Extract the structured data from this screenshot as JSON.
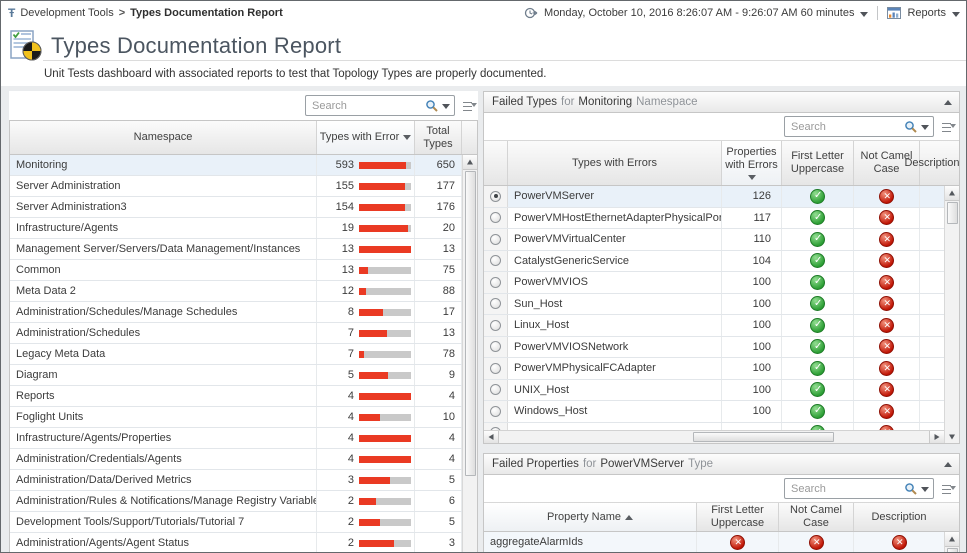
{
  "breadcrumb": {
    "item1": "Development Tools",
    "separator": ">",
    "item2": "Types Documentation Report"
  },
  "topbar": {
    "time_range": "Monday, October 10, 2016 8:26:07 AM - 9:26:07 AM 60 minutes",
    "reports_label": "Reports"
  },
  "header": {
    "title": "Types Documentation Report",
    "subtitle": "Unit Tests dashboard with associated reports to test that Topology Types are properly documented."
  },
  "colors": {
    "error_bar": "#ea3a23",
    "bar_track": "#c9c9c9",
    "pass_green": "#2c9e34",
    "fail_red": "#c01505",
    "selected_row": "#e9f1f9"
  },
  "namespace_table": {
    "search_placeholder": "Search",
    "col_namespace": "Namespace",
    "col_errors": "Types with Error",
    "col_total": "Total Types",
    "sorted_by": "Types with Error",
    "sort_dir": "desc",
    "rows": [
      {
        "namespace": "Monitoring",
        "errors": 593,
        "total": 650,
        "selected": true
      },
      {
        "namespace": "Server Administration",
        "errors": 155,
        "total": 177
      },
      {
        "namespace": "Server Administration3",
        "errors": 154,
        "total": 176
      },
      {
        "namespace": "Infrastructure/Agents",
        "errors": 19,
        "total": 20
      },
      {
        "namespace": "Management Server/Servers/Data Management/Instances",
        "errors": 13,
        "total": 13
      },
      {
        "namespace": "Common",
        "errors": 13,
        "total": 75
      },
      {
        "namespace": "Meta Data 2",
        "errors": 12,
        "total": 88
      },
      {
        "namespace": "Administration/Schedules/Manage Schedules",
        "errors": 8,
        "total": 17
      },
      {
        "namespace": "Administration/Schedules",
        "errors": 7,
        "total": 13
      },
      {
        "namespace": "Legacy Meta Data",
        "errors": 7,
        "total": 78
      },
      {
        "namespace": "Diagram",
        "errors": 5,
        "total": 9
      },
      {
        "namespace": "Reports",
        "errors": 4,
        "total": 4
      },
      {
        "namespace": "Foglight Units",
        "errors": 4,
        "total": 10
      },
      {
        "namespace": "Infrastructure/Agents/Properties",
        "errors": 4,
        "total": 4
      },
      {
        "namespace": "Administration/Credentials/Agents",
        "errors": 4,
        "total": 4
      },
      {
        "namespace": "Administration/Data/Derived Metrics",
        "errors": 3,
        "total": 5
      },
      {
        "namespace": "Administration/Rules & Notifications/Manage Registry Variables",
        "errors": 2,
        "total": 6
      },
      {
        "namespace": "Development Tools/Support/Tutorials/Tutorial 7",
        "errors": 2,
        "total": 5
      },
      {
        "namespace": "Administration/Agents/Agent Status",
        "errors": 2,
        "total": 3
      }
    ]
  },
  "failed_types_panel": {
    "title": {
      "lead": "Failed Types",
      "prep": "for",
      "subject": "Monitoring",
      "tail": "Namespace"
    },
    "search_placeholder": "Search",
    "col_type": "Types with Errors",
    "col_props": "Properties with Errors",
    "col_first": "First Letter Uppercase",
    "col_camel": "Not Camel Case",
    "col_desc": "Description",
    "sorted_by": "Properties with Errors",
    "sort_dir": "desc",
    "rows": [
      {
        "name": "PowerVMServer",
        "properties_with_errors": 126,
        "first_letter_uppercase": "pass",
        "not_camel_case": "fail",
        "selected": true
      },
      {
        "name": "PowerVMHostEthernetAdapterPhysicalPort",
        "properties_with_errors": 117,
        "first_letter_uppercase": "pass",
        "not_camel_case": "fail"
      },
      {
        "name": "PowerVMVirtualCenter",
        "properties_with_errors": 110,
        "first_letter_uppercase": "pass",
        "not_camel_case": "fail"
      },
      {
        "name": "CatalystGenericService",
        "properties_with_errors": 104,
        "first_letter_uppercase": "pass",
        "not_camel_case": "fail"
      },
      {
        "name": "PowerVMVIOS",
        "properties_with_errors": 100,
        "first_letter_uppercase": "pass",
        "not_camel_case": "fail"
      },
      {
        "name": "Sun_Host",
        "properties_with_errors": 100,
        "first_letter_uppercase": "pass",
        "not_camel_case": "fail"
      },
      {
        "name": "Linux_Host",
        "properties_with_errors": 100,
        "first_letter_uppercase": "pass",
        "not_camel_case": "fail"
      },
      {
        "name": "PowerVMVIOSNetwork",
        "properties_with_errors": 100,
        "first_letter_uppercase": "pass",
        "not_camel_case": "fail"
      },
      {
        "name": "PowerVMPhysicalFCAdapter",
        "properties_with_errors": 100,
        "first_letter_uppercase": "pass",
        "not_camel_case": "fail"
      },
      {
        "name": "UNIX_Host",
        "properties_with_errors": 100,
        "first_letter_uppercase": "pass",
        "not_camel_case": "fail"
      },
      {
        "name": "Windows_Host",
        "properties_with_errors": 100,
        "first_letter_uppercase": "pass",
        "not_camel_case": "fail"
      },
      {
        "name": "",
        "properties_with_errors": "",
        "first_letter_uppercase": "pass",
        "not_camel_case": "fail"
      }
    ]
  },
  "failed_properties_panel": {
    "title": {
      "lead": "Failed Properties",
      "prep": "for",
      "subject": "PowerVMServer",
      "tail": "Type"
    },
    "search_placeholder": "Search",
    "col_name": "Property Name",
    "col_first": "First Letter Uppercase",
    "col_camel": "Not Camel Case",
    "col_desc": "Description",
    "sorted_by": "Property Name",
    "sort_dir": "asc",
    "rows": [
      {
        "name": "aggregateAlarmIds",
        "first_letter_uppercase": "fail",
        "not_camel_case": "fail",
        "description": "fail"
      }
    ]
  }
}
